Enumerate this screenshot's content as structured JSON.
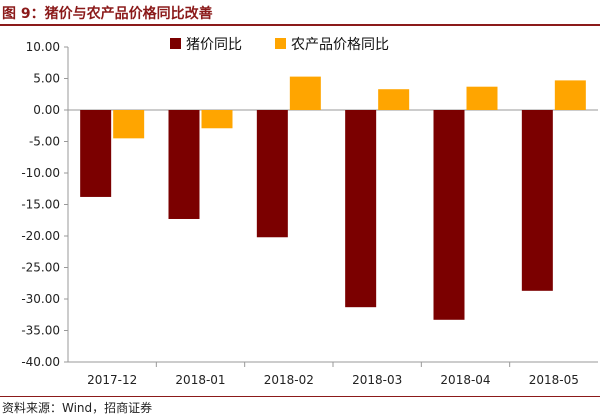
{
  "figure_title": "图 9：猪价与农产品价格同比改善",
  "source": "资料来源：Wind，招商证券",
  "colors": {
    "pork": "#7b0000",
    "agri": "#ffa500",
    "accent": "#8b1a1a"
  },
  "chart_data": {
    "type": "bar",
    "title": "",
    "xlabel": "",
    "ylabel": "",
    "categories": [
      "2017-12",
      "2018-01",
      "2018-02",
      "2018-03",
      "2018-04",
      "2018-05"
    ],
    "series": [
      {
        "name": "猪价同比",
        "values": [
          -13.8,
          -17.3,
          -20.2,
          -31.3,
          -33.3,
          -28.7
        ]
      },
      {
        "name": "农产品价格同比",
        "values": [
          -4.5,
          -2.9,
          5.3,
          3.3,
          3.7,
          4.7
        ]
      }
    ],
    "ylim": [
      -40,
      10
    ],
    "yticks": [
      "10.00",
      "5.00",
      "0.00",
      "-5.00",
      "-10.00",
      "-15.00",
      "-20.00",
      "-25.00",
      "-30.00",
      "-35.00",
      "-40.00"
    ],
    "grid": false,
    "legend": "top"
  }
}
